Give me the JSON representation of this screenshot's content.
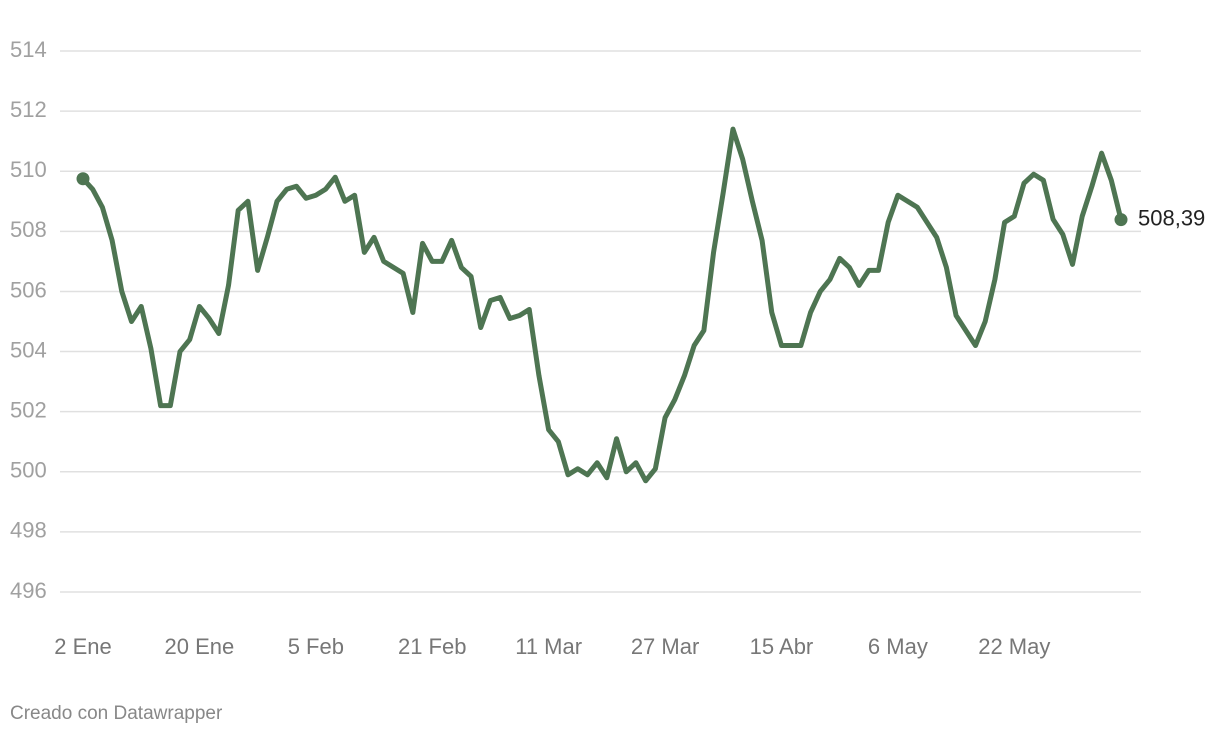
{
  "chart_data": {
    "type": "line",
    "source": "Creado con Datawrapper",
    "categories": [
      "2 Ene",
      null,
      null,
      null,
      null,
      null,
      null,
      null,
      null,
      null,
      null,
      null,
      "20 Ene",
      null,
      null,
      null,
      null,
      null,
      null,
      null,
      null,
      null,
      null,
      null,
      "5 Feb",
      null,
      null,
      null,
      null,
      null,
      null,
      null,
      null,
      null,
      null,
      null,
      "21 Feb",
      null,
      null,
      null,
      null,
      null,
      null,
      null,
      null,
      null,
      null,
      null,
      "11 Mar",
      null,
      null,
      null,
      null,
      null,
      null,
      null,
      null,
      null,
      null,
      null,
      "27 Mar",
      null,
      null,
      null,
      null,
      null,
      null,
      null,
      null,
      null,
      null,
      null,
      "15 Abr",
      null,
      null,
      null,
      null,
      null,
      null,
      null,
      null,
      null,
      null,
      null,
      "6 May",
      null,
      null,
      null,
      null,
      null,
      null,
      null,
      null,
      null,
      null,
      null,
      "22 May",
      null,
      null,
      null,
      null,
      null,
      null,
      null,
      null,
      null,
      null,
      null
    ],
    "series": [
      {
        "color": "#4e7552",
        "values": [
          509.75,
          509.4,
          508.8,
          507.7,
          506.0,
          505.0,
          505.5,
          504.1,
          502.2,
          502.2,
          504.0,
          504.4,
          505.5,
          505.1,
          504.6,
          506.2,
          508.7,
          509.0,
          506.7,
          507.8,
          509.0,
          509.4,
          509.5,
          509.1,
          509.2,
          509.4,
          509.8,
          509.0,
          509.2,
          507.3,
          507.8,
          507.0,
          506.8,
          506.6,
          505.3,
          507.6,
          507.0,
          507.0,
          507.7,
          506.8,
          506.5,
          504.8,
          505.7,
          505.8,
          505.1,
          505.2,
          505.4,
          503.2,
          501.4,
          501.0,
          499.9,
          500.1,
          499.9,
          500.3,
          499.8,
          501.1,
          500.0,
          500.3,
          499.7,
          500.1,
          501.8,
          502.4,
          503.2,
          504.2,
          504.7,
          507.3,
          509.3,
          511.4,
          510.4,
          509.0,
          507.7,
          505.3,
          504.2,
          504.2,
          504.2,
          505.3,
          506.0,
          506.4,
          507.1,
          506.8,
          506.2,
          506.7,
          506.7,
          508.3,
          509.2,
          509.0,
          508.8,
          508.3,
          507.8,
          506.8,
          505.2,
          504.7,
          504.2,
          505.0,
          506.4,
          508.3,
          508.5,
          509.6,
          509.9,
          509.7,
          508.4,
          507.9,
          506.9,
          508.5,
          509.5,
          510.6,
          509.7,
          508.39
        ],
        "value_labels": [
          null,
          null,
          null,
          null,
          null,
          null,
          null,
          null,
          null,
          null,
          null,
          null,
          null,
          null,
          null,
          null,
          null,
          null,
          null,
          null,
          null,
          null,
          null,
          null,
          null,
          null,
          null,
          null,
          null,
          null,
          null,
          null,
          null,
          null,
          null,
          null,
          null,
          null,
          null,
          null,
          null,
          null,
          null,
          null,
          null,
          null,
          null,
          null,
          null,
          null,
          null,
          null,
          null,
          null,
          null,
          null,
          null,
          null,
          null,
          null,
          null,
          null,
          null,
          null,
          null,
          null,
          null,
          null,
          null,
          null,
          null,
          null,
          null,
          null,
          null,
          null,
          null,
          null,
          null,
          null,
          null,
          null,
          null,
          null,
          null,
          null,
          null,
          null,
          null,
          null,
          null,
          null,
          null,
          null,
          null,
          null,
          null,
          null,
          null,
          null,
          null,
          null,
          null,
          null,
          null,
          null,
          null,
          "508,39"
        ]
      }
    ],
    "ylim": [
      495,
      514.6
    ],
    "yticks": [
      496,
      498,
      500,
      502,
      504,
      506,
      508,
      510,
      512,
      514
    ],
    "grid": true
  }
}
